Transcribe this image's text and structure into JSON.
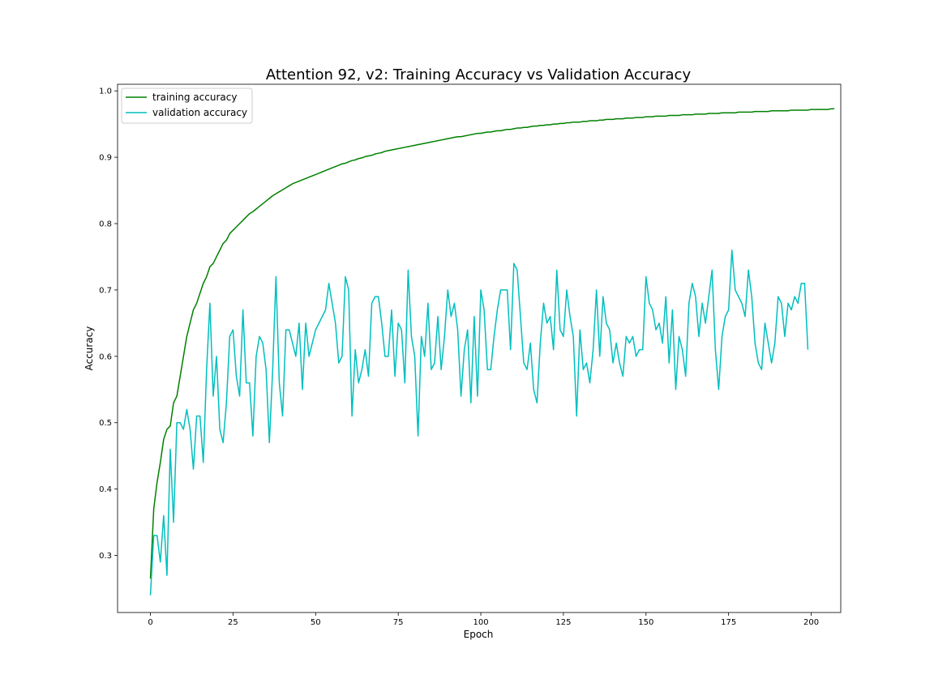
{
  "chart_data": {
    "type": "line",
    "title": "Attention 92, v2: Training Accuracy vs Validation Accuracy",
    "xlabel": "Epoch",
    "ylabel": "Accuracy",
    "xlim": [
      -9.95,
      208.95
    ],
    "ylim": [
      0.214,
      1.01
    ],
    "xticks": [
      0,
      25,
      50,
      75,
      100,
      125,
      150,
      175,
      200
    ],
    "yticks": [
      0.3,
      0.4,
      0.5,
      0.6,
      0.7,
      0.8,
      0.9,
      1.0
    ],
    "ytick_labels": [
      "0.3",
      "0.4",
      "0.5",
      "0.6",
      "0.7",
      "0.8",
      "0.9",
      "1.0"
    ],
    "legend_position": "upper left",
    "grid": false,
    "series": [
      {
        "name": "training accuracy",
        "color": "#008000",
        "x_start": 0,
        "values": [
          0.265,
          0.37,
          0.41,
          0.44,
          0.475,
          0.49,
          0.495,
          0.53,
          0.54,
          0.57,
          0.6,
          0.63,
          0.65,
          0.67,
          0.68,
          0.695,
          0.71,
          0.72,
          0.735,
          0.74,
          0.75,
          0.76,
          0.77,
          0.775,
          0.785,
          0.79,
          0.795,
          0.8,
          0.805,
          0.81,
          0.815,
          0.818,
          0.822,
          0.826,
          0.83,
          0.834,
          0.838,
          0.842,
          0.845,
          0.848,
          0.851,
          0.854,
          0.857,
          0.86,
          0.862,
          0.864,
          0.866,
          0.868,
          0.87,
          0.872,
          0.874,
          0.876,
          0.878,
          0.88,
          0.882,
          0.884,
          0.886,
          0.888,
          0.89,
          0.891,
          0.893,
          0.895,
          0.896,
          0.898,
          0.899,
          0.901,
          0.902,
          0.903,
          0.905,
          0.906,
          0.907,
          0.909,
          0.91,
          0.911,
          0.912,
          0.913,
          0.914,
          0.915,
          0.916,
          0.917,
          0.918,
          0.919,
          0.92,
          0.921,
          0.922,
          0.923,
          0.924,
          0.925,
          0.926,
          0.927,
          0.928,
          0.929,
          0.93,
          0.931,
          0.931,
          0.932,
          0.933,
          0.934,
          0.935,
          0.936,
          0.936,
          0.937,
          0.938,
          0.938,
          0.939,
          0.94,
          0.94,
          0.941,
          0.942,
          0.942,
          0.943,
          0.944,
          0.944,
          0.945,
          0.945,
          0.946,
          0.947,
          0.947,
          0.948,
          0.948,
          0.949,
          0.949,
          0.95,
          0.95,
          0.951,
          0.951,
          0.952,
          0.952,
          0.953,
          0.953,
          0.953,
          0.954,
          0.954,
          0.955,
          0.955,
          0.955,
          0.956,
          0.956,
          0.957,
          0.957,
          0.957,
          0.958,
          0.958,
          0.958,
          0.959,
          0.959,
          0.959,
          0.96,
          0.96,
          0.96,
          0.961,
          0.961,
          0.961,
          0.962,
          0.962,
          0.962,
          0.962,
          0.963,
          0.963,
          0.963,
          0.963,
          0.964,
          0.964,
          0.964,
          0.964,
          0.965,
          0.965,
          0.965,
          0.965,
          0.966,
          0.966,
          0.966,
          0.966,
          0.967,
          0.967,
          0.967,
          0.967,
          0.967,
          0.968,
          0.968,
          0.968,
          0.968,
          0.968,
          0.969,
          0.969,
          0.969,
          0.969,
          0.969,
          0.97,
          0.97,
          0.97,
          0.97,
          0.97,
          0.97,
          0.971,
          0.971,
          0.971,
          0.971,
          0.971,
          0.971,
          0.972,
          0.972,
          0.972,
          0.972,
          0.972,
          0.972,
          0.973,
          0.973
        ]
      },
      {
        "name": "validation accuracy",
        "color": "#00BFBF",
        "x_start": 0,
        "values": [
          0.24,
          0.33,
          0.33,
          0.29,
          0.36,
          0.27,
          0.46,
          0.35,
          0.5,
          0.5,
          0.49,
          0.52,
          0.49,
          0.43,
          0.51,
          0.51,
          0.44,
          0.58,
          0.68,
          0.54,
          0.6,
          0.49,
          0.47,
          0.53,
          0.63,
          0.64,
          0.57,
          0.54,
          0.67,
          0.56,
          0.56,
          0.48,
          0.6,
          0.63,
          0.62,
          0.58,
          0.47,
          0.58,
          0.72,
          0.56,
          0.51,
          0.64,
          0.64,
          0.62,
          0.6,
          0.65,
          0.55,
          0.65,
          0.6,
          0.62,
          0.64,
          0.65,
          0.66,
          0.67,
          0.71,
          0.68,
          0.65,
          0.59,
          0.6,
          0.72,
          0.7,
          0.51,
          0.61,
          0.56,
          0.58,
          0.61,
          0.57,
          0.68,
          0.69,
          0.69,
          0.65,
          0.6,
          0.6,
          0.67,
          0.57,
          0.65,
          0.64,
          0.56,
          0.73,
          0.63,
          0.6,
          0.48,
          0.63,
          0.6,
          0.68,
          0.58,
          0.59,
          0.66,
          0.58,
          0.63,
          0.7,
          0.66,
          0.68,
          0.64,
          0.54,
          0.61,
          0.64,
          0.53,
          0.66,
          0.54,
          0.7,
          0.67,
          0.58,
          0.58,
          0.63,
          0.67,
          0.7,
          0.7,
          0.7,
          0.61,
          0.74,
          0.73,
          0.66,
          0.59,
          0.58,
          0.62,
          0.55,
          0.53,
          0.62,
          0.68,
          0.65,
          0.66,
          0.61,
          0.73,
          0.64,
          0.63,
          0.7,
          0.66,
          0.63,
          0.51,
          0.64,
          0.58,
          0.59,
          0.56,
          0.61,
          0.7,
          0.6,
          0.69,
          0.65,
          0.64,
          0.59,
          0.62,
          0.59,
          0.57,
          0.63,
          0.62,
          0.63,
          0.6,
          0.61,
          0.61,
          0.72,
          0.68,
          0.67,
          0.64,
          0.65,
          0.62,
          0.69,
          0.59,
          0.67,
          0.55,
          0.63,
          0.61,
          0.57,
          0.68,
          0.71,
          0.69,
          0.63,
          0.68,
          0.65,
          0.69,
          0.73,
          0.61,
          0.55,
          0.63,
          0.66,
          0.67,
          0.76,
          0.7,
          0.69,
          0.68,
          0.66,
          0.73,
          0.69,
          0.62,
          0.59,
          0.58,
          0.65,
          0.62,
          0.59,
          0.62,
          0.69,
          0.68,
          0.63,
          0.68,
          0.67,
          0.69,
          0.68,
          0.71,
          0.71,
          0.61
        ]
      }
    ]
  }
}
